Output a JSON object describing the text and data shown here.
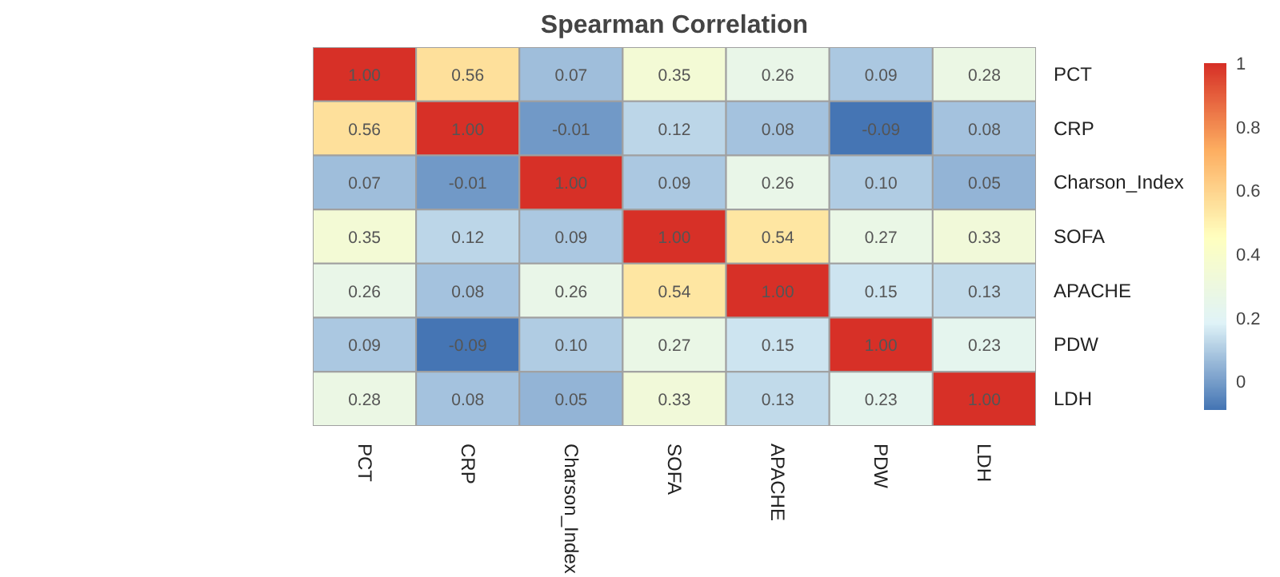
{
  "chart_data": {
    "type": "heatmap",
    "title": "Spearman Correlation",
    "categories": [
      "PCT",
      "CRP",
      "Charson_Index",
      "SOFA",
      "APACHE",
      "PDW",
      "LDH"
    ],
    "y_categories": [
      "PCT",
      "CRP",
      "Charson_Index",
      "SOFA",
      "APACHE",
      "PDW",
      "LDH"
    ],
    "cells": [
      [
        1.0,
        0.56,
        0.07,
        0.35,
        0.26,
        0.09,
        0.28
      ],
      [
        0.56,
        1.0,
        -0.01,
        0.12,
        0.08,
        -0.09,
        0.08
      ],
      [
        0.07,
        -0.01,
        1.0,
        0.09,
        0.26,
        0.1,
        0.05
      ],
      [
        0.35,
        0.12,
        0.09,
        1.0,
        0.54,
        0.27,
        0.33
      ],
      [
        0.26,
        0.08,
        0.26,
        0.54,
        1.0,
        0.15,
        0.13
      ],
      [
        0.09,
        -0.09,
        0.1,
        0.27,
        0.15,
        1.0,
        0.23
      ],
      [
        0.28,
        0.08,
        0.05,
        0.33,
        0.13,
        0.23,
        1.0
      ]
    ],
    "cell_labels": [
      [
        "1.00",
        "0.56",
        "0.07",
        "0.35",
        "0.26",
        "0.09",
        "0.28"
      ],
      [
        "0.56",
        "1.00",
        "-0.01",
        "0.12",
        "0.08",
        "-0.09",
        "0.08"
      ],
      [
        "0.07",
        "-0.01",
        "1.00",
        "0.09",
        "0.26",
        "0.10",
        "0.05"
      ],
      [
        "0.35",
        "0.12",
        "0.09",
        "1.00",
        "0.54",
        "0.27",
        "0.33"
      ],
      [
        "0.26",
        "0.08",
        "0.26",
        "0.54",
        "1.00",
        "0.15",
        "0.13"
      ],
      [
        "0.09",
        "-0.09",
        "0.10",
        "0.27",
        "0.15",
        "1.00",
        "0.23"
      ],
      [
        "0.28",
        "0.08",
        "0.05",
        "0.33",
        "0.13",
        "0.23",
        "1.00"
      ]
    ],
    "clim": [
      -0.09,
      1
    ],
    "cticks": [
      0,
      0.2,
      0.4,
      0.6,
      0.8,
      1
    ]
  }
}
